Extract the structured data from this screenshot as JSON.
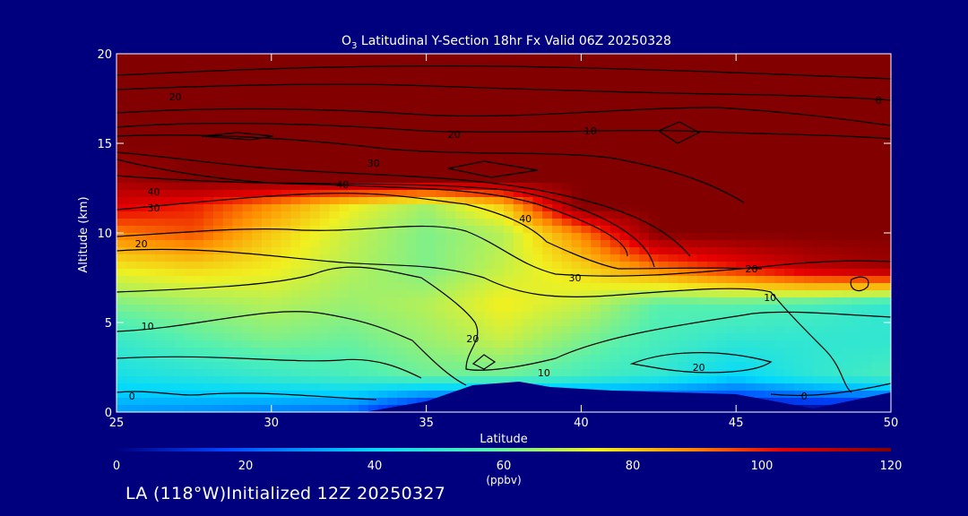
{
  "title_prefix": "O",
  "title_sub": "3",
  "title_rest": " Latitudinal Y-Section 18hr  Fx Valid 06Z 20250328",
  "footer": "LA (118°W)Initialized 12Z 20250327",
  "chart_data": {
    "type": "heatmap",
    "title": "O3 Latitudinal Y-Section 18hr  Fx Valid 06Z 20250328",
    "xlabel": "Latitude",
    "ylabel": "Altitude (km)",
    "xlim": [
      25,
      50
    ],
    "ylim": [
      0,
      20
    ],
    "x_ticks": [
      "25",
      "30",
      "35",
      "40",
      "45",
      "50"
    ],
    "y_ticks": [
      "0",
      "5",
      "10",
      "15",
      "20"
    ],
    "colorbar": {
      "label": "(ppbv)",
      "range": [
        0,
        120
      ],
      "ticks": [
        "0",
        "20",
        "40",
        "60",
        "80",
        "100",
        "120"
      ],
      "colors": [
        "#000082",
        "#0044ff",
        "#00d8ff",
        "#55f0b0",
        "#f0f020",
        "#ff8c00",
        "#e80000",
        "#820000"
      ]
    },
    "contour_levels": [
      0,
      10,
      20,
      30,
      40
    ],
    "contour_labels": [
      {
        "text": "20",
        "lat": 26.9,
        "alt": 17.6
      },
      {
        "text": "20",
        "lat": 35.9,
        "alt": 15.5
      },
      {
        "text": "10",
        "lat": 40.3,
        "alt": 15.7
      },
      {
        "text": "0",
        "lat": 49.6,
        "alt": 17.4
      },
      {
        "text": "30",
        "lat": 33.3,
        "alt": 13.9
      },
      {
        "text": "40",
        "lat": 26.2,
        "alt": 12.3
      },
      {
        "text": "40",
        "lat": 32.3,
        "alt": 12.7
      },
      {
        "text": "30",
        "lat": 26.2,
        "alt": 11.4
      },
      {
        "text": "20",
        "lat": 25.8,
        "alt": 9.4
      },
      {
        "text": "40",
        "lat": 38.2,
        "alt": 10.8
      },
      {
        "text": "30",
        "lat": 39.8,
        "alt": 7.5
      },
      {
        "text": "20",
        "lat": 45.5,
        "alt": 8.0
      },
      {
        "text": "10",
        "lat": 46.1,
        "alt": 6.4
      },
      {
        "text": "10",
        "lat": 26.0,
        "alt": 4.8
      },
      {
        "text": "20",
        "lat": 36.5,
        "alt": 4.1
      },
      {
        "text": "10",
        "lat": 38.8,
        "alt": 2.2
      },
      {
        "text": "20",
        "lat": 43.8,
        "alt": 2.5
      },
      {
        "text": "0",
        "lat": 25.5,
        "alt": 0.9
      },
      {
        "text": "0",
        "lat": 47.2,
        "alt": 0.9
      }
    ],
    "ozone_field": {
      "lat": [
        25,
        27.5,
        30,
        32.5,
        35,
        37.5,
        40,
        42.5,
        45,
        47.5,
        50
      ],
      "alt": [
        0,
        2,
        4,
        6,
        8,
        10,
        11.5,
        13,
        15,
        17.5,
        20
      ],
      "values": [
        [
          30,
          28,
          25,
          22,
          0,
          0,
          0,
          0,
          0,
          0,
          0
        ],
        [
          45,
          48,
          52,
          55,
          60,
          60,
          55,
          50,
          40,
          50,
          55
        ],
        [
          52,
          58,
          62,
          60,
          65,
          70,
          62,
          55,
          50,
          50,
          50
        ],
        [
          62,
          65,
          68,
          65,
          68,
          75,
          70,
          58,
          58,
          55,
          50
        ],
        [
          75,
          78,
          75,
          68,
          62,
          70,
          78,
          90,
          100,
          110,
          115
        ],
        [
          90,
          95,
          80,
          70,
          62,
          68,
          90,
          120,
          120,
          120,
          120
        ],
        [
          105,
          100,
          88,
          75,
          66,
          80,
          120,
          120,
          120,
          120,
          120
        ],
        [
          115,
          120,
          120,
          120,
          120,
          120,
          120,
          120,
          120,
          120,
          120
        ],
        [
          120,
          120,
          120,
          120,
          120,
          120,
          120,
          120,
          120,
          120,
          120
        ],
        [
          120,
          120,
          120,
          120,
          120,
          120,
          120,
          120,
          120,
          120,
          120
        ],
        [
          120,
          120,
          120,
          120,
          120,
          120,
          120,
          120,
          120,
          120,
          120
        ]
      ]
    },
    "terrain": {
      "lat": [
        25,
        33,
        35,
        36.5,
        38,
        39,
        41,
        43,
        45,
        47.5,
        50
      ],
      "alt": [
        0,
        0,
        0.6,
        1.5,
        1.7,
        1.4,
        1.2,
        1.1,
        1.0,
        0.2,
        1.1
      ]
    }
  }
}
